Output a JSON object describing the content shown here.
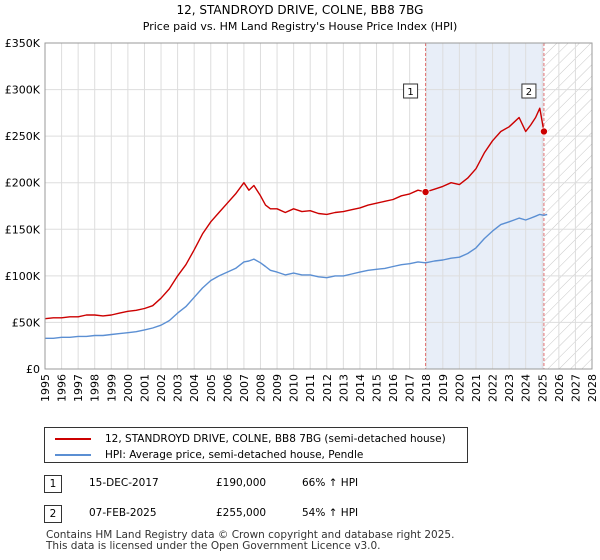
{
  "chart_data": {
    "type": "line",
    "title": "12, STANDROYD DRIVE, COLNE, BB8 7BG",
    "subtitle": "Price paid vs. HM Land Registry's House Price Index (HPI)",
    "xlim": [
      1995,
      2028
    ],
    "ylim": [
      0,
      350000
    ],
    "y_ticks": [
      0,
      50000,
      100000,
      150000,
      200000,
      250000,
      300000,
      350000
    ],
    "y_tick_labels": [
      "£0",
      "£50K",
      "£100K",
      "£150K",
      "£200K",
      "£250K",
      "£300K",
      "£350K"
    ],
    "x_ticks": [
      1995,
      1996,
      1997,
      1998,
      1999,
      2000,
      2001,
      2002,
      2003,
      2004,
      2005,
      2006,
      2007,
      2008,
      2009,
      2010,
      2011,
      2012,
      2013,
      2014,
      2015,
      2016,
      2017,
      2018,
      2019,
      2020,
      2021,
      2022,
      2023,
      2024,
      2025,
      2026,
      2027,
      2028
    ],
    "x_tick_labels": [
      "1995",
      "1996",
      "1997",
      "1998",
      "1999",
      "2000",
      "2001",
      "2002",
      "2003",
      "2004",
      "2005",
      "2006",
      "2007",
      "2008",
      "2009",
      "2010",
      "2011",
      "2012",
      "2013",
      "2014",
      "2015",
      "2016",
      "2017",
      "2018",
      "2019",
      "2020",
      "2021",
      "2022",
      "2023",
      "2024",
      "2025",
      "2026",
      "2027",
      "2028"
    ],
    "grid": true,
    "series": [
      {
        "name": "12, STANDROYD DRIVE, COLNE, BB8 7BG (semi-detached house)",
        "color": "#cc0000",
        "x": [
          1995,
          1995.5,
          1996,
          1996.5,
          1997,
          1997.5,
          1998,
          1998.5,
          1999,
          1999.5,
          2000,
          2000.5,
          2001,
          2001.5,
          2002,
          2002.5,
          2003,
          2003.5,
          2004,
          2004.5,
          2005,
          2005.5,
          2006,
          2006.5,
          2007,
          2007.3,
          2007.6,
          2008,
          2008.3,
          2008.6,
          2009,
          2009.5,
          2010,
          2010.5,
          2011,
          2011.5,
          2012,
          2012.5,
          2013,
          2013.5,
          2014,
          2014.5,
          2015,
          2015.5,
          2016,
          2016.5,
          2017,
          2017.5,
          2017.96,
          2018.5,
          2019,
          2019.5,
          2020,
          2020.5,
          2021,
          2021.5,
          2022,
          2022.5,
          2023,
          2023.3,
          2023.6,
          2024,
          2024.3,
          2024.6,
          2024.85,
          2025.1
        ],
        "values": [
          54000,
          55000,
          55000,
          56000,
          56000,
          58000,
          58000,
          57000,
          58000,
          60000,
          62000,
          63000,
          65000,
          68000,
          76000,
          86000,
          100000,
          112000,
          128000,
          145000,
          158000,
          168000,
          178000,
          188000,
          200000,
          192000,
          197000,
          186000,
          176000,
          172000,
          172000,
          168000,
          172000,
          169000,
          170000,
          167000,
          166000,
          168000,
          169000,
          171000,
          173000,
          176000,
          178000,
          180000,
          182000,
          186000,
          188000,
          192000,
          190000,
          193000,
          196000,
          200000,
          198000,
          205000,
          215000,
          232000,
          245000,
          255000,
          260000,
          265000,
          270000,
          255000,
          262000,
          270000,
          280000,
          255000
        ]
      },
      {
        "name": "HPI: Average price, semi-detached house, Pendle",
        "color": "#5b8fd3",
        "x": [
          1995,
          1995.5,
          1996,
          1996.5,
          1997,
          1997.5,
          1998,
          1998.5,
          1999,
          1999.5,
          2000,
          2000.5,
          2001,
          2001.5,
          2002,
          2002.5,
          2003,
          2003.5,
          2004,
          2004.5,
          2005,
          2005.5,
          2006,
          2006.5,
          2007,
          2007.3,
          2007.6,
          2008,
          2008.3,
          2008.6,
          2009,
          2009.5,
          2010,
          2010.5,
          2011,
          2011.5,
          2012,
          2012.5,
          2013,
          2013.5,
          2014,
          2014.5,
          2015,
          2015.5,
          2016,
          2016.5,
          2017,
          2017.5,
          2017.96,
          2018.5,
          2019,
          2019.5,
          2020,
          2020.5,
          2021,
          2021.5,
          2022,
          2022.5,
          2023,
          2023.3,
          2023.6,
          2024,
          2024.3,
          2024.6,
          2024.85,
          2025.1,
          2025.3
        ],
        "values": [
          33000,
          33000,
          34000,
          34000,
          35000,
          35000,
          36000,
          36000,
          37000,
          38000,
          39000,
          40000,
          42000,
          44000,
          47000,
          52000,
          60000,
          67000,
          77000,
          87000,
          95000,
          100000,
          104000,
          108000,
          115000,
          116000,
          118000,
          114000,
          110000,
          106000,
          104000,
          101000,
          103000,
          101000,
          101000,
          99000,
          98000,
          100000,
          100000,
          102000,
          104000,
          106000,
          107000,
          108000,
          110000,
          112000,
          113000,
          115000,
          114000,
          116000,
          117000,
          119000,
          120000,
          124000,
          130000,
          140000,
          148000,
          155000,
          158000,
          160000,
          162000,
          160000,
          162000,
          164000,
          166000,
          165000,
          166000
        ]
      }
    ],
    "transactions": [
      {
        "label": "1",
        "year": 2017.96,
        "price": 190000,
        "date": "15-DEC-2017",
        "price_text": "£190,000",
        "hpi_text": "66% ↑ HPI"
      },
      {
        "label": "2",
        "year": 2025.1,
        "price": 255000,
        "date": "07-FEB-2025",
        "price_text": "£255,000",
        "hpi_text": "54% ↑ HPI"
      }
    ],
    "projection_start": 2025.1,
    "shade_start": 2017.96
  },
  "footer": {
    "line1": "Contains HM Land Registry data © Crown copyright and database right 2025.",
    "line2": "This data is licensed under the Open Government Licence v3.0."
  },
  "colors": {
    "property": "#cc0000",
    "hpi": "#5b8fd3",
    "shade": "#e8eef8"
  }
}
